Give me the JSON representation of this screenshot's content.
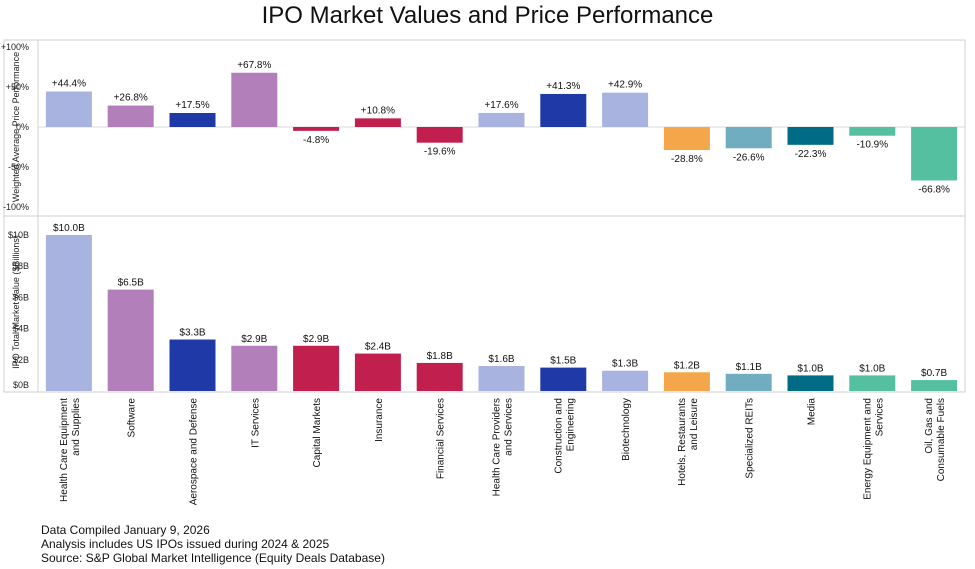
{
  "chart_data": {
    "type": "bar",
    "title": "IPO Market Values and Price Performance",
    "categories": [
      "Health Care Equipment and Supplies",
      "Software",
      "Aerospace and Defense",
      "IT Services",
      "Capital Markets",
      "Insurance",
      "Financial Services",
      "Health Care Providers and Services",
      "Construction and Engineering",
      "Biotechnology",
      "Hotels, Restaurants and Leisure",
      "Specialized REITs",
      "Media",
      "Energy Equipment and Services",
      "Oil, Gas and Consumable Fuels"
    ],
    "category_lines": [
      [
        "Health Care Equipment",
        "and Supplies"
      ],
      [
        "Software"
      ],
      [
        "Aerospace and Defense"
      ],
      [
        "IT Services"
      ],
      [
        "Capital Markets"
      ],
      [
        "Insurance"
      ],
      [
        "Financial Services"
      ],
      [
        "Health Care Providers",
        "and Services"
      ],
      [
        "Construction and",
        "Engineering"
      ],
      [
        "Biotechnology"
      ],
      [
        "Hotels, Restaurants",
        "and Leisure"
      ],
      [
        "Specialized REITs"
      ],
      [
        "Media"
      ],
      [
        "Energy Equipment and",
        "Services"
      ],
      [
        "Oil, Gas and",
        "Consumable Fuels"
      ]
    ],
    "colors": [
      "#a9b3e0",
      "#b27fbb",
      "#1f3aa6",
      "#b27fbb",
      "#c11f4d",
      "#c11f4d",
      "#c11f4d",
      "#a9b3e0",
      "#1f3aa6",
      "#a9b3e0",
      "#f5a54a",
      "#70adc0",
      "#006b85",
      "#55c0a0",
      "#55c0a0"
    ],
    "panels": [
      {
        "name": "price_performance",
        "ylabel": "Weighted Average Price Performance",
        "ylim": [
          -100,
          100
        ],
        "yticks": [
          100,
          50,
          0,
          -50,
          -100
        ],
        "ytick_labels": [
          "+100%",
          "+50%",
          "0%",
          "-50%",
          "-100%"
        ],
        "values": [
          44.4,
          26.8,
          17.5,
          67.8,
          -4.8,
          10.8,
          -19.6,
          17.6,
          41.3,
          42.9,
          -28.8,
          -26.6,
          -22.3,
          -10.9,
          -66.8
        ],
        "data_labels": [
          "+44.4%",
          "+26.8%",
          "+17.5%",
          "+67.8%",
          "-4.8%",
          "+10.8%",
          "-19.6%",
          "+17.6%",
          "+41.3%",
          "+42.9%",
          "-28.8%",
          "-26.6%",
          "-22.3%",
          "-10.9%",
          "-66.8%"
        ]
      },
      {
        "name": "market_value",
        "ylabel": "IPO Total Market Value ($Billions)",
        "ylim": [
          0,
          10
        ],
        "yticks": [
          0,
          2,
          4,
          6,
          8,
          10
        ],
        "ytick_labels": [
          "$0B",
          "$2B",
          "$4B",
          "$6B",
          "$8B",
          "$10B"
        ],
        "values": [
          10.0,
          6.5,
          3.3,
          2.9,
          2.9,
          2.4,
          1.8,
          1.6,
          1.5,
          1.3,
          1.2,
          1.1,
          1.0,
          1.0,
          0.7
        ],
        "data_labels": [
          "$10.0B",
          "$6.5B",
          "$3.3B",
          "$2.9B",
          "$2.9B",
          "$2.4B",
          "$1.8B",
          "$1.6B",
          "$1.5B",
          "$1.3B",
          "$1.2B",
          "$1.1B",
          "$1.0B",
          "$1.0B",
          "$0.7B"
        ]
      }
    ],
    "grid": false,
    "legend": "none"
  },
  "notes": {
    "compiled": "Data Compiled January 9, 2026",
    "analysis": "Analysis includes US IPOs issued during 2024 & 2025",
    "source": "Source: S&P Global Market Intelligence (Equity Deals Database)"
  }
}
